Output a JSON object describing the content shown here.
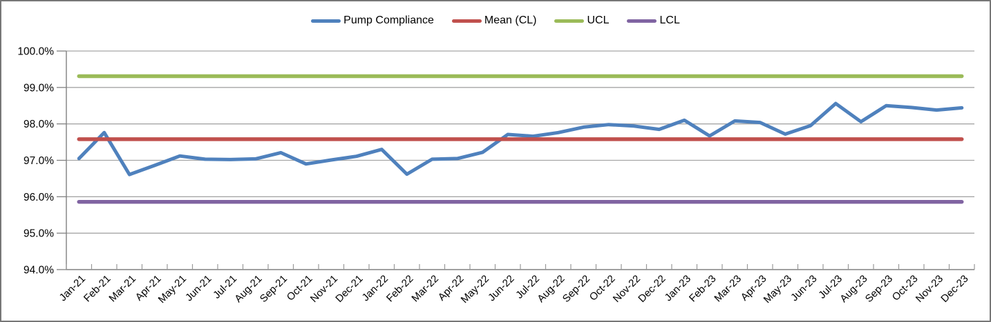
{
  "chart_data": {
    "type": "line",
    "title": "",
    "xlabel": "",
    "ylabel": "",
    "categories": [
      "Jan-21",
      "Feb-21",
      "Mar-21",
      "Apr-21",
      "May-21",
      "Jun-21",
      "Jul-21",
      "Aug-21",
      "Sep-21",
      "Oct-21",
      "Nov-21",
      "Dec-21",
      "Jan-22",
      "Feb-22",
      "Mar-22",
      "Apr-22",
      "May-22",
      "Jun-22",
      "Jul-22",
      "Aug-22",
      "Sep-22",
      "Oct-22",
      "Nov-22",
      "Dec-22",
      "Jan-23",
      "Feb-23",
      "Mar-23",
      "Apr-23",
      "May-23",
      "Jun-23",
      "Jul-23",
      "Aug-23",
      "Sep-23",
      "Oct-23",
      "Nov-23",
      "Dec-23"
    ],
    "series": [
      {
        "name": "Pump Compliance",
        "kind": "data-line",
        "color": "#4F81BD",
        "values": [
          97.05,
          97.76,
          96.61,
          96.86,
          97.12,
          97.03,
          97.02,
          97.04,
          97.21,
          96.9,
          97.01,
          97.11,
          97.3,
          96.62,
          97.03,
          97.05,
          97.22,
          97.71,
          97.66,
          97.76,
          97.91,
          97.98,
          97.94,
          97.85,
          98.1,
          97.67,
          98.08,
          98.04,
          97.72,
          97.95,
          98.56,
          98.06,
          98.5,
          98.45,
          98.38,
          98.44
        ]
      },
      {
        "name": "Mean (CL)",
        "kind": "constant-line",
        "color": "#C0504D",
        "value": 97.58
      },
      {
        "name": "UCL",
        "kind": "constant-line",
        "color": "#9BBB59",
        "value": 99.31
      },
      {
        "name": "LCL",
        "kind": "constant-line",
        "color": "#8064A2",
        "value": 95.86
      }
    ],
    "ylim": [
      94,
      100
    ],
    "y_tick_values": [
      94,
      95,
      96,
      97,
      98,
      99,
      100
    ],
    "y_tick_labels": [
      "94.0%",
      "95.0%",
      "96.0%",
      "97.0%",
      "98.0%",
      "99.0%",
      "100.0%"
    ],
    "grid": true,
    "legend_position": "top",
    "axis_color": "#808080",
    "tick_color": "#999999",
    "gridline_color": "#A6A6A6",
    "text_color": "#000000"
  },
  "legend": {
    "items": [
      {
        "label": "Pump Compliance",
        "color": "#4F81BD"
      },
      {
        "label": "Mean (CL)",
        "color": "#C0504D"
      },
      {
        "label": "UCL",
        "color": "#9BBB59"
      },
      {
        "label": "LCL",
        "color": "#8064A2"
      }
    ]
  }
}
